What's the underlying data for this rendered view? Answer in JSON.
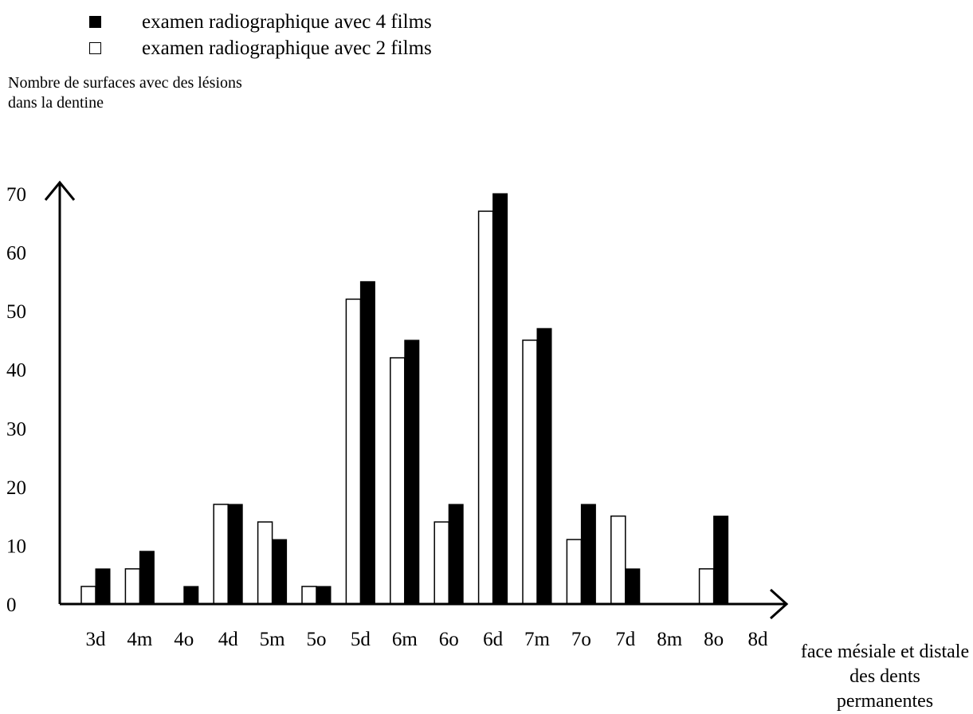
{
  "chart_data": {
    "type": "bar",
    "legend": [
      {
        "label": "examen radiographique avec 4 films",
        "style": "filled"
      },
      {
        "label": "examen radiographique avec 2 films",
        "style": "empty"
      }
    ],
    "ylabel": "Nombre de surfaces avec des lésions dans la dentine",
    "xlabel": "face mésiale et distale des dents permanentes",
    "categories": [
      "3d",
      "4m",
      "4o",
      "4d",
      "5m",
      "5o",
      "5d",
      "6m",
      "6o",
      "6d",
      "7m",
      "7o",
      "7d",
      "8m",
      "8o",
      "8d"
    ],
    "y_ticks": [
      "0",
      "10",
      "20",
      "30",
      "40",
      "50",
      "60",
      "70"
    ],
    "ylim": [
      0,
      70
    ],
    "series": [
      {
        "name": "examen radiographique avec 2 films",
        "fill": "#ffffff",
        "values": [
          3,
          6,
          0,
          17,
          14,
          3,
          52,
          42,
          14,
          67,
          45,
          11,
          15,
          0,
          6,
          null
        ]
      },
      {
        "name": "examen radiographique avec 4 films",
        "fill": "#000000",
        "values": [
          6,
          9,
          3,
          17,
          11,
          3,
          55,
          45,
          17,
          70,
          47,
          17,
          6,
          0,
          15,
          null
        ]
      }
    ],
    "grid": false
  }
}
